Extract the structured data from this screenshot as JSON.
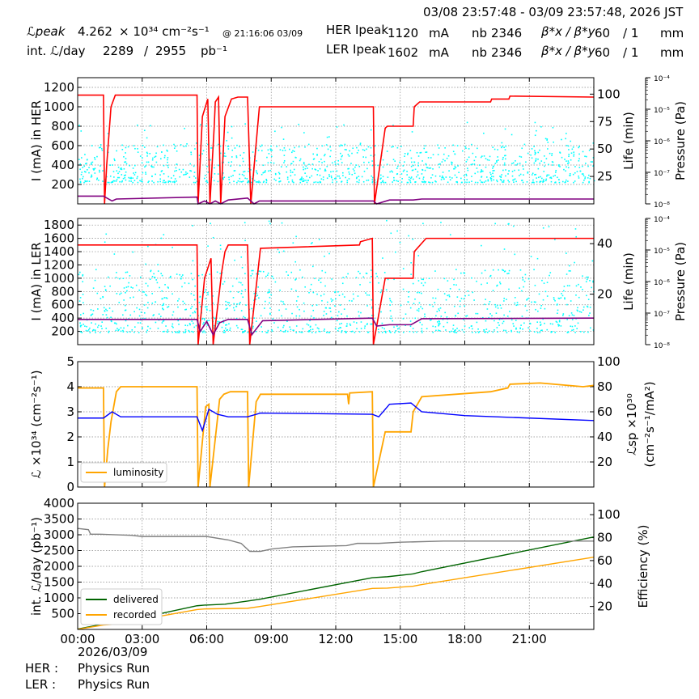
{
  "header": {
    "date_range": "03/08 23:57:48 - 03/09 23:57:48, 2026 JST",
    "lpeak_label": "ℒpeak",
    "lpeak_value": "4.262",
    "lpeak_unit": "× 10³⁴ cm⁻²s⁻¹",
    "lpeak_time": "@ 21:16:06 03/09",
    "intl_label": "int. ℒ/day",
    "intl_value1": "2289",
    "intl_sep": "/",
    "intl_value2": "2955",
    "intl_unit": "pb⁻¹",
    "her_peak_label": "HER Ipeak",
    "her_peak_value": "1120",
    "her_peak_unit": "mA",
    "her_nb_label": "nb",
    "her_nb_value": "2346",
    "her_beta_label": "β*x / β*y",
    "her_beta_x": "60",
    "her_beta_y": "/ 1",
    "her_beta_unit": "mm",
    "ler_peak_label": "LER Ipeak",
    "ler_peak_value": "1602",
    "ler_peak_unit": "mA",
    "ler_nb_label": "nb",
    "ler_nb_value": "2346",
    "ler_beta_label": "β*x / β*y",
    "ler_beta_x": "60",
    "ler_beta_y": "/ 1",
    "ler_beta_unit": "mm"
  },
  "footer": {
    "date": "2026/03/09",
    "her_label": "HER :",
    "her_status": "Physics Run",
    "ler_label": "LER :",
    "ler_status": "Physics Run"
  },
  "colors": {
    "current": "#ff0000",
    "life": "#00ffff",
    "pressure": "#800080",
    "luminosity": "#ffa500",
    "specific": "#0000ff",
    "delivered": "#006400",
    "recorded": "#ffa500",
    "efficiency": "#808080"
  },
  "chart_data": [
    {
      "type": "line",
      "ylabel": "I (mA) in HER",
      "y2label": "Life (min)",
      "y3label": "Pressure (Pa)",
      "ylim": [
        0,
        1300
      ],
      "yticks": [
        200,
        400,
        600,
        800,
        1000,
        1200
      ],
      "y2lim": [
        0,
        115
      ],
      "y2ticks": [
        25,
        50,
        75,
        100
      ],
      "y3ticks": [
        "10⁻⁸",
        "10⁻⁷",
        "10⁻⁶",
        "10⁻⁵",
        "10⁻⁴"
      ],
      "xlim": [
        0,
        24
      ],
      "grid": true,
      "series": [
        {
          "x": [
            0,
            1.2,
            1.25,
            1.35,
            1.55,
            1.75,
            5.55,
            5.6,
            5.8,
            6.05,
            6.15,
            6.35,
            6.4,
            6.55,
            6.65,
            6.85,
            7.1,
            7.15,
            7.45,
            7.9,
            8.05,
            8.45,
            13.75,
            13.8,
            14.3,
            14.4,
            15.6,
            15.65,
            15.9,
            19.2,
            19.25,
            20.05,
            20.1,
            24
          ],
          "y": [
            1120,
            1120,
            0,
            400,
            1000,
            1120,
            1120,
            0,
            900,
            1080,
            0,
            800,
            1050,
            1100,
            0,
            900,
            1050,
            1080,
            1100,
            1100,
            0,
            1000,
            1000,
            0,
            780,
            800,
            800,
            1000,
            1050,
            1050,
            1080,
            1080,
            1110,
            1100
          ]
        },
        {
          "x": [
            0,
            1.2,
            1.6,
            1.8,
            5.55,
            5.6,
            5.9,
            6.15,
            6.4,
            6.65,
            7.0,
            7.9,
            8.2,
            8.45,
            13.75,
            13.9,
            14.5,
            15.6,
            16.0,
            24
          ],
          "y": [
            8,
            8,
            3,
            5,
            7,
            0,
            3,
            0,
            3,
            0,
            4,
            6,
            0,
            3,
            3,
            0,
            4,
            4,
            5,
            5
          ]
        }
      ],
      "life_points": {
        "ymin": 20,
        "ymax": 55,
        "count": 1100
      }
    },
    {
      "type": "line",
      "ylabel": "I (mA) in LER",
      "y2label": "Life (min)",
      "y3label": "Pressure (Pa)",
      "ylim": [
        0,
        1900
      ],
      "yticks": [
        200,
        400,
        600,
        800,
        1000,
        1200,
        1400,
        1600,
        1800
      ],
      "y2lim": [
        0,
        50
      ],
      "y2ticks": [
        20,
        40
      ],
      "y3ticks": [
        "10⁻⁸",
        "10⁻⁷",
        "10⁻⁶",
        "10⁻⁵",
        "10⁻⁴"
      ],
      "xlim": [
        0,
        24
      ],
      "grid": true,
      "series": [
        {
          "x": [
            0,
            5.55,
            5.6,
            5.9,
            6.2,
            6.3,
            6.7,
            6.85,
            7.0,
            7.2,
            7.9,
            8.0,
            8.5,
            13.1,
            13.15,
            13.7,
            13.75,
            14.3,
            14.4,
            15.6,
            15.65,
            16.2,
            24
          ],
          "y": [
            1500,
            1500,
            0,
            1000,
            1300,
            0,
            1100,
            1400,
            1500,
            1500,
            1500,
            0,
            1450,
            1500,
            1550,
            1600,
            0,
            1000,
            1000,
            1000,
            1400,
            1600,
            1600
          ]
        },
        {
          "x": [
            0,
            5.55,
            5.7,
            6.0,
            6.3,
            6.6,
            7.0,
            7.9,
            8.1,
            8.6,
            13.7,
            13.9,
            14.5,
            15.5,
            16.0,
            24
          ],
          "y": [
            380,
            380,
            200,
            350,
            150,
            330,
            380,
            380,
            150,
            360,
            400,
            280,
            300,
            300,
            390,
            400
          ]
        }
      ],
      "life_points": {
        "ymin": 5,
        "ymax": 30,
        "count": 1100
      }
    },
    {
      "type": "line",
      "ylabel": "ℒ ×10³⁴ (cm⁻²s⁻¹)",
      "y2label": "ℒsp ×10³⁰ (cm⁻²s⁻¹/mA²)",
      "ylim": [
        0,
        5
      ],
      "yticks": [
        0,
        1,
        2,
        3,
        4,
        5
      ],
      "y2lim": [
        0,
        100
      ],
      "y2ticks": [
        20,
        40,
        60,
        80,
        100
      ],
      "xlim": [
        0,
        24
      ],
      "grid": true,
      "legend": "lower-left",
      "series": [
        {
          "name": "luminosity",
          "x": [
            0,
            1.2,
            1.25,
            1.4,
            1.55,
            1.8,
            2.0,
            5.55,
            5.6,
            5.95,
            6.1,
            6.15,
            6.55,
            6.6,
            6.8,
            7.1,
            7.9,
            7.95,
            8.3,
            8.5,
            12.55,
            12.6,
            12.65,
            13.7,
            13.75,
            14.3,
            14.35,
            15.5,
            15.6,
            16.0,
            19.2,
            20.0,
            20.1,
            21.5,
            23.5,
            24
          ],
          "y": [
            3.95,
            3.95,
            0,
            1.5,
            2.6,
            3.8,
            4.0,
            4.0,
            0,
            3.2,
            3.3,
            0,
            3.1,
            3.5,
            3.7,
            3.8,
            3.8,
            0,
            3.4,
            3.7,
            3.7,
            3.3,
            3.75,
            3.8,
            0,
            2.2,
            2.2,
            2.2,
            3.0,
            3.6,
            3.8,
            3.95,
            4.1,
            4.15,
            4.0,
            4.05
          ]
        },
        {
          "name": "specific",
          "x": [
            0,
            1.2,
            1.6,
            2.0,
            5.55,
            5.8,
            6.1,
            6.5,
            7.0,
            7.9,
            8.5,
            13.7,
            14.0,
            14.5,
            15.5,
            16.0,
            18.0,
            21.0,
            24
          ],
          "y": [
            55,
            55,
            60,
            56,
            56,
            45,
            62,
            58,
            56,
            56,
            59,
            58,
            56,
            66,
            67,
            60,
            57,
            55,
            53
          ]
        }
      ]
    },
    {
      "type": "line",
      "ylabel": "int. ℒ/day (pb⁻¹)",
      "y2label": "Efficiency (%)",
      "ylim": [
        0,
        4000
      ],
      "yticks": [
        500,
        1000,
        1500,
        2000,
        2500,
        3000,
        3500,
        4000
      ],
      "y2lim": [
        0,
        110
      ],
      "y2ticks": [
        20,
        40,
        60,
        80,
        100
      ],
      "xlim": [
        0,
        24
      ],
      "xticks": [
        "00:00",
        "03:00",
        "06:00",
        "09:00",
        "12:00",
        "15:00",
        "18:00",
        "21:00"
      ],
      "grid": true,
      "legend": "lower-left",
      "series": [
        {
          "name": "delivered",
          "x": [
            0,
            1.2,
            1.8,
            5.55,
            5.9,
            6.85,
            7.9,
            8.5,
            13.7,
            14.4,
            15.6,
            16.0,
            24
          ],
          "y": [
            10,
            170,
            200,
            750,
            770,
            800,
            900,
            960,
            1640,
            1670,
            1760,
            1830,
            2930
          ]
        },
        {
          "name": "recorded",
          "x": [
            0,
            1.2,
            1.8,
            5.55,
            5.9,
            6.85,
            7.9,
            8.5,
            13.7,
            14.4,
            15.6,
            16.0,
            24
          ],
          "y": [
            5,
            140,
            170,
            630,
            650,
            660,
            670,
            730,
            1300,
            1310,
            1370,
            1420,
            2290
          ]
        },
        {
          "name": "efficiency",
          "x": [
            0,
            0.5,
            0.6,
            1.0,
            2.5,
            3.0,
            5.5,
            6.0,
            7.0,
            7.6,
            8.0,
            8.5,
            9.0,
            10.0,
            12.5,
            13.0,
            14.0,
            15.0,
            17.0,
            18.0,
            24
          ],
          "y": [
            88,
            87,
            83,
            83,
            82,
            81,
            81,
            81,
            78,
            75,
            68,
            68,
            70,
            72,
            73,
            75,
            75,
            76,
            77,
            77,
            77
          ]
        }
      ]
    }
  ]
}
